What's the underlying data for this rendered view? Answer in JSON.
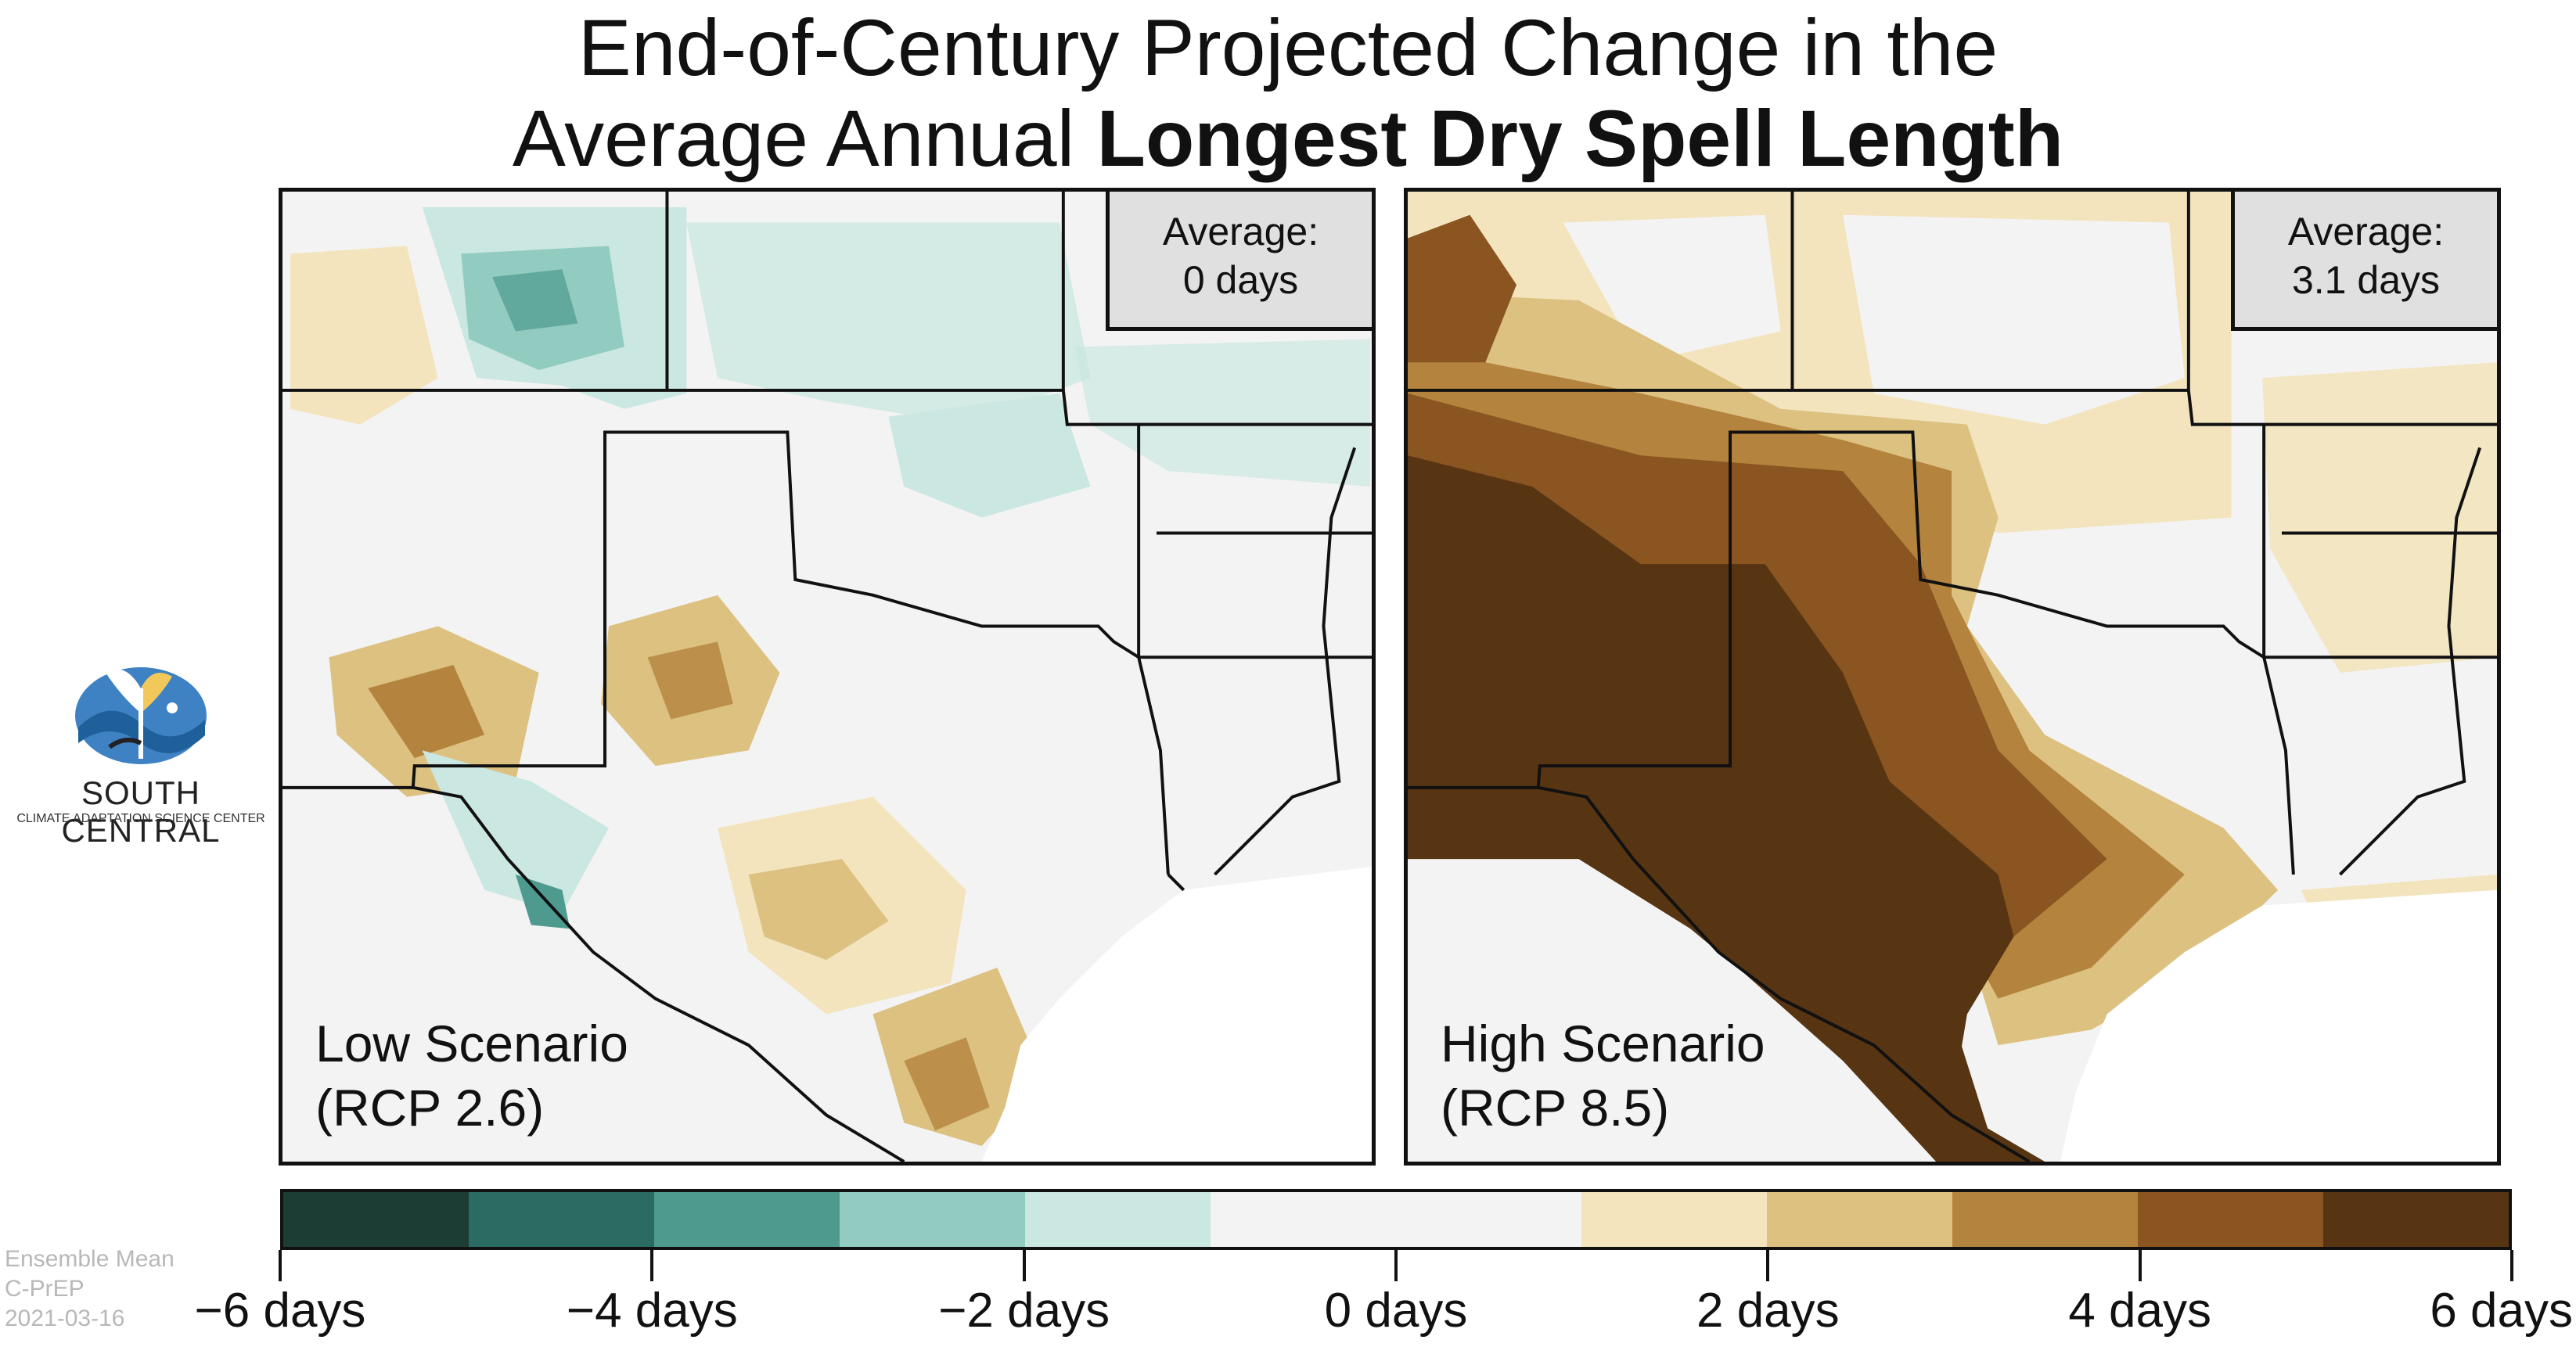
{
  "title": {
    "line1": "End-of-Century Projected Change in the",
    "line2_plain": "Average Annual ",
    "line2_bold": "Longest Dry Spell Length"
  },
  "panels": [
    {
      "average_label": "Average:",
      "average_value": "0 days",
      "scenario_name": "Low Scenario",
      "scenario_code": "(RCP 2.6)"
    },
    {
      "average_label": "Average:",
      "average_value": "3.1 days",
      "scenario_name": "High Scenario",
      "scenario_code": "(RCP 8.5)"
    }
  ],
  "logo": {
    "name": "SOUTH CENTRAL",
    "subtitle": "CLIMATE ADAPTATION SCIENCE CENTER"
  },
  "colorbar": {
    "colors": [
      "#1c3d34",
      "#2a6b64",
      "#4e9a8e",
      "#92cbc0",
      "#cbe7e1",
      "#f3f3f3",
      "#f3f3f3",
      "#f3e4bd",
      "#dcc181",
      "#b4833d",
      "#8a5520",
      "#573513"
    ],
    "tick_labels": [
      "−6 days",
      "−4 days",
      "−2 days",
      "0 days",
      "2 days",
      "4 days",
      "6 days"
    ],
    "min": -6,
    "max": 6
  },
  "footnote": {
    "line1": "Ensemble Mean",
    "line2": "C-PrEP",
    "line3": "2021-03-16"
  },
  "colors": {
    "dark_brown": "#573513",
    "mid_brown": "#b4833d",
    "light_tan": "#f3e4bd",
    "light_teal": "#cbe7e1",
    "teal": "#92cbc0",
    "neutral": "#f3f3f3"
  }
}
